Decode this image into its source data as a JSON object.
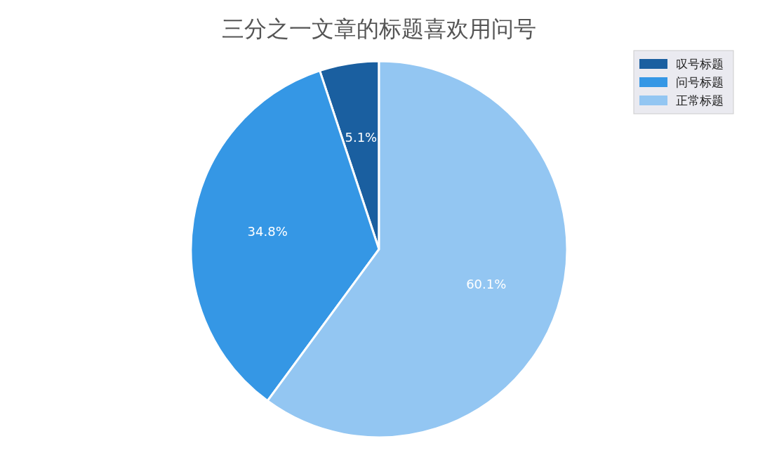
{
  "chart_data": {
    "type": "pie",
    "title": "三分之一文章的标题喜欢用问号",
    "categories": [
      "叹号标题",
      "问号标题",
      "正常标题"
    ],
    "values": [
      5.1,
      34.8,
      60.1
    ],
    "colors": [
      "#1a5fa0",
      "#3597e5",
      "#93c6f2"
    ],
    "value_labels": [
      "5.1%",
      "34.8%",
      "60.1%"
    ],
    "legend": "top right"
  }
}
